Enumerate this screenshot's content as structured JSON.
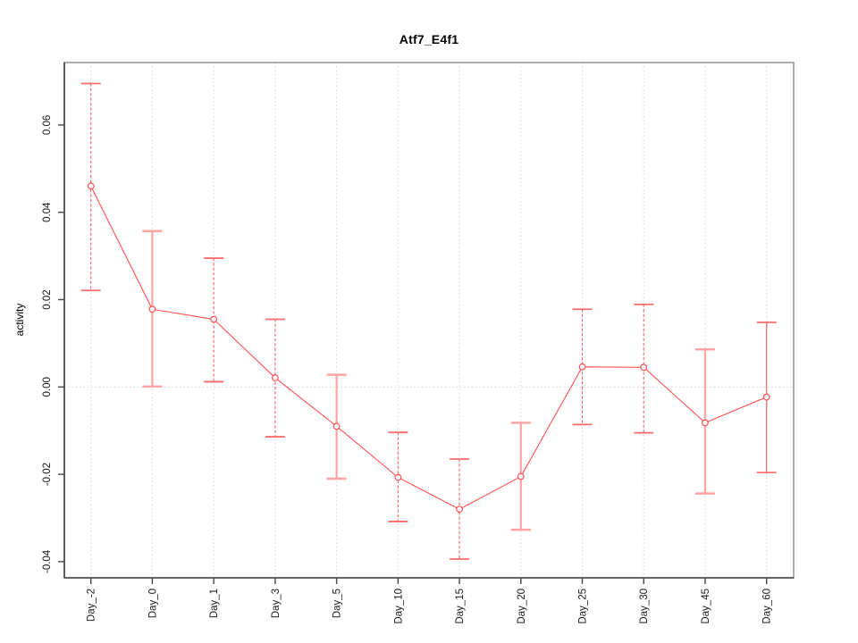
{
  "chart_data": {
    "type": "line",
    "title": "Atf7_E4f1",
    "xlabel": "",
    "ylabel": "activity",
    "categories": [
      "Day_-2",
      "Day_0",
      "Day_1",
      "Day_3",
      "Day_5",
      "Day_10",
      "Day_15",
      "Day_20",
      "Day_25",
      "Day_30",
      "Day_45",
      "Day_60"
    ],
    "series": [
      {
        "name": "Atf7_E4f1",
        "values": [
          0.046,
          0.0178,
          0.0155,
          0.0021,
          -0.009,
          -0.0207,
          -0.028,
          -0.0205,
          0.0046,
          0.0045,
          -0.0082,
          -0.0023
        ],
        "error_low": [
          0.0221,
          0.0001,
          0.0012,
          -0.0114,
          -0.021,
          -0.0308,
          -0.0394,
          -0.0327,
          -0.0086,
          -0.0105,
          -0.0244,
          -0.0196
        ],
        "error_high": [
          0.0695,
          0.0357,
          0.0295,
          0.0155,
          0.0028,
          -0.0104,
          -0.0165,
          -0.0082,
          0.0178,
          0.0189,
          0.0086,
          0.0148
        ],
        "bar_styles": [
          "dashed",
          "solid",
          "dashed",
          "dashed",
          "solid",
          "dashed",
          "dashed",
          "solid",
          "dashed",
          "dashed",
          "solid",
          "solid-thin"
        ]
      }
    ],
    "yticks": [
      -0.04,
      -0.02,
      0,
      0.02,
      0.04,
      0.06
    ],
    "ytick_labels": [
      "-0.04",
      "-0.02",
      "0.00",
      "0.02",
      "0.04",
      "0.06"
    ],
    "ylim": [
      -0.0437,
      0.0743
    ],
    "grid": {
      "horizontal_at": [
        0
      ],
      "vertical": "each-category",
      "line_style": "dotted"
    },
    "legend_position": "none",
    "marker": "open-circle",
    "colors": {
      "series_line": "#ff5151",
      "marker_stroke": "#ff5151",
      "bar_dashed": "#ff5151",
      "bar_solid": "#ffa3a3",
      "bar_solid_thin": "#ff7575",
      "cap_dashed": "#ff6b6b",
      "grid": "#d7d7d7",
      "axis": "#454545",
      "box": "#999999",
      "text": "#1a1a1a",
      "background": "#ffffff"
    }
  }
}
